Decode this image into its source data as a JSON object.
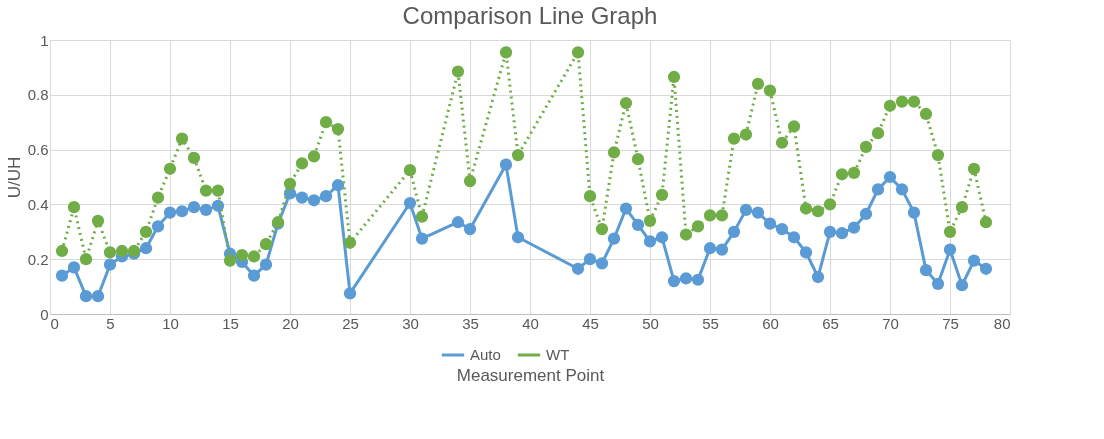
{
  "chart_data": {
    "type": "line",
    "title": "Comparison Line Graph",
    "xlabel": "Measurement Point",
    "ylabel": "U/UH",
    "xlim": [
      0,
      80
    ],
    "xticks": [
      0,
      5,
      10,
      15,
      20,
      25,
      30,
      35,
      40,
      45,
      50,
      55,
      60,
      65,
      70,
      75,
      80
    ],
    "ylim": [
      0,
      1
    ],
    "yticks": [
      0,
      0.2,
      0.4,
      0.6,
      0.8,
      1
    ],
    "x": [
      1,
      2,
      3,
      4,
      5,
      6,
      7,
      8,
      9,
      10,
      11,
      12,
      13,
      14,
      15,
      16,
      17,
      18,
      19,
      20,
      21,
      22,
      23,
      24,
      25,
      30,
      31,
      34,
      35,
      38,
      39,
      44,
      45,
      46,
      47,
      48,
      49,
      50,
      51,
      52,
      53,
      54,
      55,
      56,
      57,
      58,
      59,
      60,
      61,
      62,
      63,
      64,
      65,
      66,
      67,
      68,
      69,
      70,
      71,
      72,
      73,
      74,
      75,
      76,
      77,
      78
    ],
    "grid": true,
    "legend": "bottom",
    "marker": "circle",
    "series": [
      {
        "name": "Auto",
        "color": "#5b9bd5",
        "line_style": "solid",
        "values": [
          0.14,
          0.17,
          0.065,
          0.065,
          0.18,
          0.21,
          0.22,
          0.24,
          0.32,
          0.37,
          0.375,
          0.39,
          0.38,
          0.395,
          0.22,
          0.19,
          0.14,
          0.18,
          0.33,
          0.44,
          0.425,
          0.415,
          0.43,
          0.47,
          0.075,
          0.405,
          0.275,
          0.335,
          0.31,
          0.545,
          0.28,
          0.165,
          0.2,
          0.185,
          0.275,
          0.385,
          0.325,
          0.265,
          0.28,
          0.12,
          0.13,
          0.125,
          0.24,
          0.235,
          0.3,
          0.38,
          0.37,
          0.33,
          0.31,
          0.28,
          0.225,
          0.135,
          0.3,
          0.295,
          0.315,
          0.365,
          0.455,
          0.5,
          0.455,
          0.37,
          0.16,
          0.11,
          0.235,
          0.105,
          0.195,
          0.165
        ]
      },
      {
        "name": "WT",
        "color": "#70ad47",
        "line_style": "dotted",
        "values": [
          0.23,
          0.39,
          0.2,
          0.34,
          0.225,
          0.23,
          0.23,
          0.3,
          0.425,
          0.53,
          0.64,
          0.57,
          0.45,
          0.45,
          0.195,
          0.215,
          0.21,
          0.255,
          0.335,
          0.475,
          0.55,
          0.575,
          0.7,
          0.675,
          0.26,
          0.525,
          0.355,
          0.885,
          0.485,
          0.955,
          0.58,
          0.955,
          0.43,
          0.31,
          0.59,
          0.77,
          0.565,
          0.34,
          0.435,
          0.865,
          0.29,
          0.32,
          0.36,
          0.36,
          0.64,
          0.655,
          0.84,
          0.815,
          0.625,
          0.685,
          0.385,
          0.375,
          0.4,
          0.51,
          0.515,
          0.61,
          0.66,
          0.76,
          0.775,
          0.775,
          0.73,
          0.58,
          0.3,
          0.39,
          0.53,
          0.335
        ]
      }
    ]
  }
}
